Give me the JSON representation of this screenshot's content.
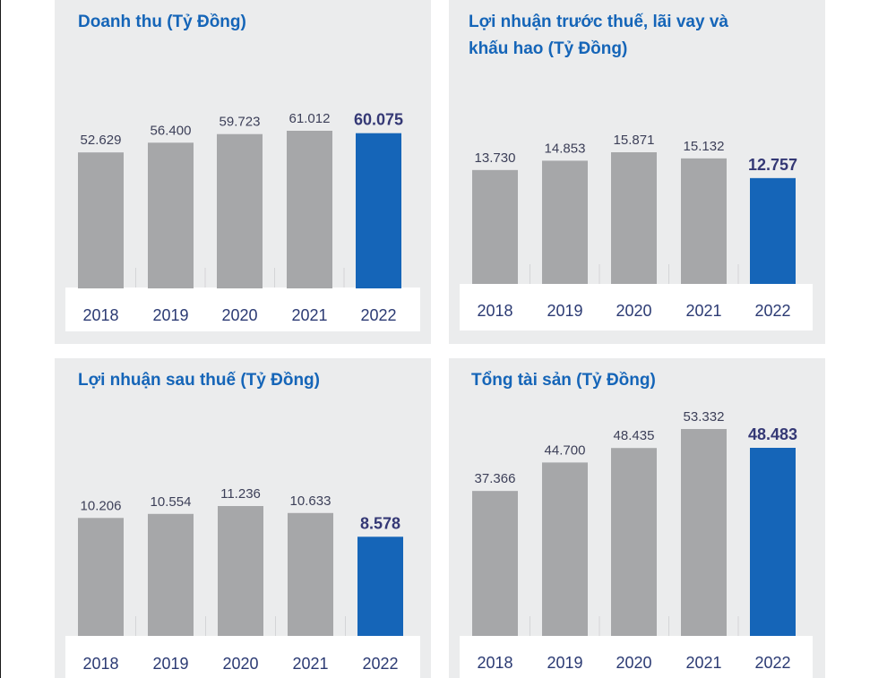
{
  "colors": {
    "bar": "#a6a7a9",
    "highlight": "#1565b8",
    "panel_bg": "#ebeced",
    "axis_bg": "#ffffff"
  },
  "chart_data": [
    {
      "type": "bar",
      "title": "Doanh thu (Tỷ Đồng)",
      "categories": [
        "2018",
        "2019",
        "2020",
        "2021",
        "2022"
      ],
      "values": [
        52629,
        56400,
        59723,
        61012,
        60075
      ],
      "value_labels": [
        "52.629",
        "56.400",
        "59.723",
        "61.012",
        "60.075"
      ],
      "highlight_index": 4,
      "ylim": [
        0,
        61012
      ]
    },
    {
      "type": "bar",
      "title": "Lợi nhuận trước thuế, lãi vay và khấu hao (Tỷ Đồng)",
      "categories": [
        "2018",
        "2019",
        "2020",
        "2021",
        "2022"
      ],
      "values": [
        13730,
        14853,
        15871,
        15132,
        12757
      ],
      "value_labels": [
        "13.730",
        "14.853",
        "15.871",
        "15.132",
        "12.757"
      ],
      "highlight_index": 4,
      "ylim": [
        0,
        15871
      ]
    },
    {
      "type": "bar",
      "title": "Lợi nhuận sau thuế (Tỷ Đồng)",
      "categories": [
        "2018",
        "2019",
        "2020",
        "2021",
        "2022"
      ],
      "values": [
        10206,
        10554,
        11236,
        10633,
        8578
      ],
      "value_labels": [
        "10.206",
        "10.554",
        "11.236",
        "10.633",
        "8.578"
      ],
      "highlight_index": 4,
      "ylim": [
        0,
        11236
      ]
    },
    {
      "type": "bar",
      "title": "Tổng tài sản (Tỷ Đồng)",
      "categories": [
        "2018",
        "2019",
        "2020",
        "2021",
        "2022"
      ],
      "values": [
        37366,
        44700,
        48435,
        53332,
        48483
      ],
      "value_labels": [
        "37.366",
        "44.700",
        "48.435",
        "53.332",
        "48.483"
      ],
      "highlight_index": 4,
      "ylim": [
        0,
        53332
      ]
    }
  ]
}
